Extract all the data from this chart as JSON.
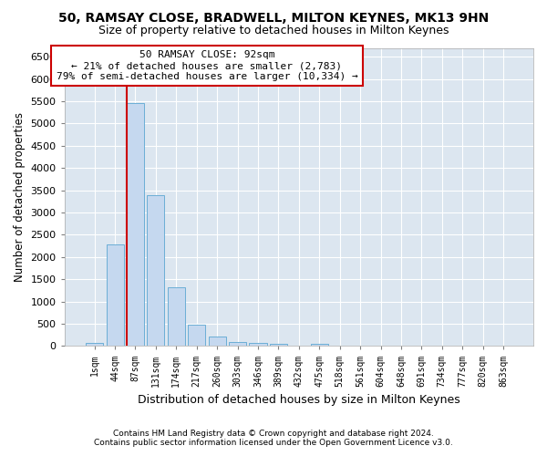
{
  "title": "50, RAMSAY CLOSE, BRADWELL, MILTON KEYNES, MK13 9HN",
  "subtitle": "Size of property relative to detached houses in Milton Keynes",
  "xlabel": "Distribution of detached houses by size in Milton Keynes",
  "ylabel": "Number of detached properties",
  "footer_line1": "Contains HM Land Registry data © Crown copyright and database right 2024.",
  "footer_line2": "Contains public sector information licensed under the Open Government Licence v3.0.",
  "annotation_title": "50 RAMSAY CLOSE: 92sqm",
  "annotation_line1": "← 21% of detached houses are smaller (2,783)",
  "annotation_line2": "79% of semi-detached houses are larger (10,334) →",
  "bar_color": "#c5d8ef",
  "bar_edge_color": "#6baed6",
  "plot_bg_color": "#dce6f0",
  "fig_bg_color": "#ffffff",
  "grid_color": "#ffffff",
  "annotation_box_color": "#ffffff",
  "annotation_box_edge": "#cc0000",
  "marker_line_color": "#cc0000",
  "bins": [
    "1sqm",
    "44sqm",
    "87sqm",
    "131sqm",
    "174sqm",
    "217sqm",
    "260sqm",
    "303sqm",
    "346sqm",
    "389sqm",
    "432sqm",
    "475sqm",
    "518sqm",
    "561sqm",
    "604sqm",
    "648sqm",
    "691sqm",
    "734sqm",
    "777sqm",
    "820sqm",
    "863sqm"
  ],
  "values": [
    75,
    2280,
    5450,
    3380,
    1320,
    475,
    220,
    100,
    75,
    50,
    5,
    50,
    0,
    0,
    0,
    0,
    0,
    0,
    0,
    0,
    0
  ],
  "marker_bin_index": 2,
  "ylim": [
    0,
    6700
  ],
  "yticks": [
    0,
    500,
    1000,
    1500,
    2000,
    2500,
    3000,
    3500,
    4000,
    4500,
    5000,
    5500,
    6000,
    6500
  ],
  "figsize": [
    6.0,
    5.0
  ],
  "dpi": 100
}
